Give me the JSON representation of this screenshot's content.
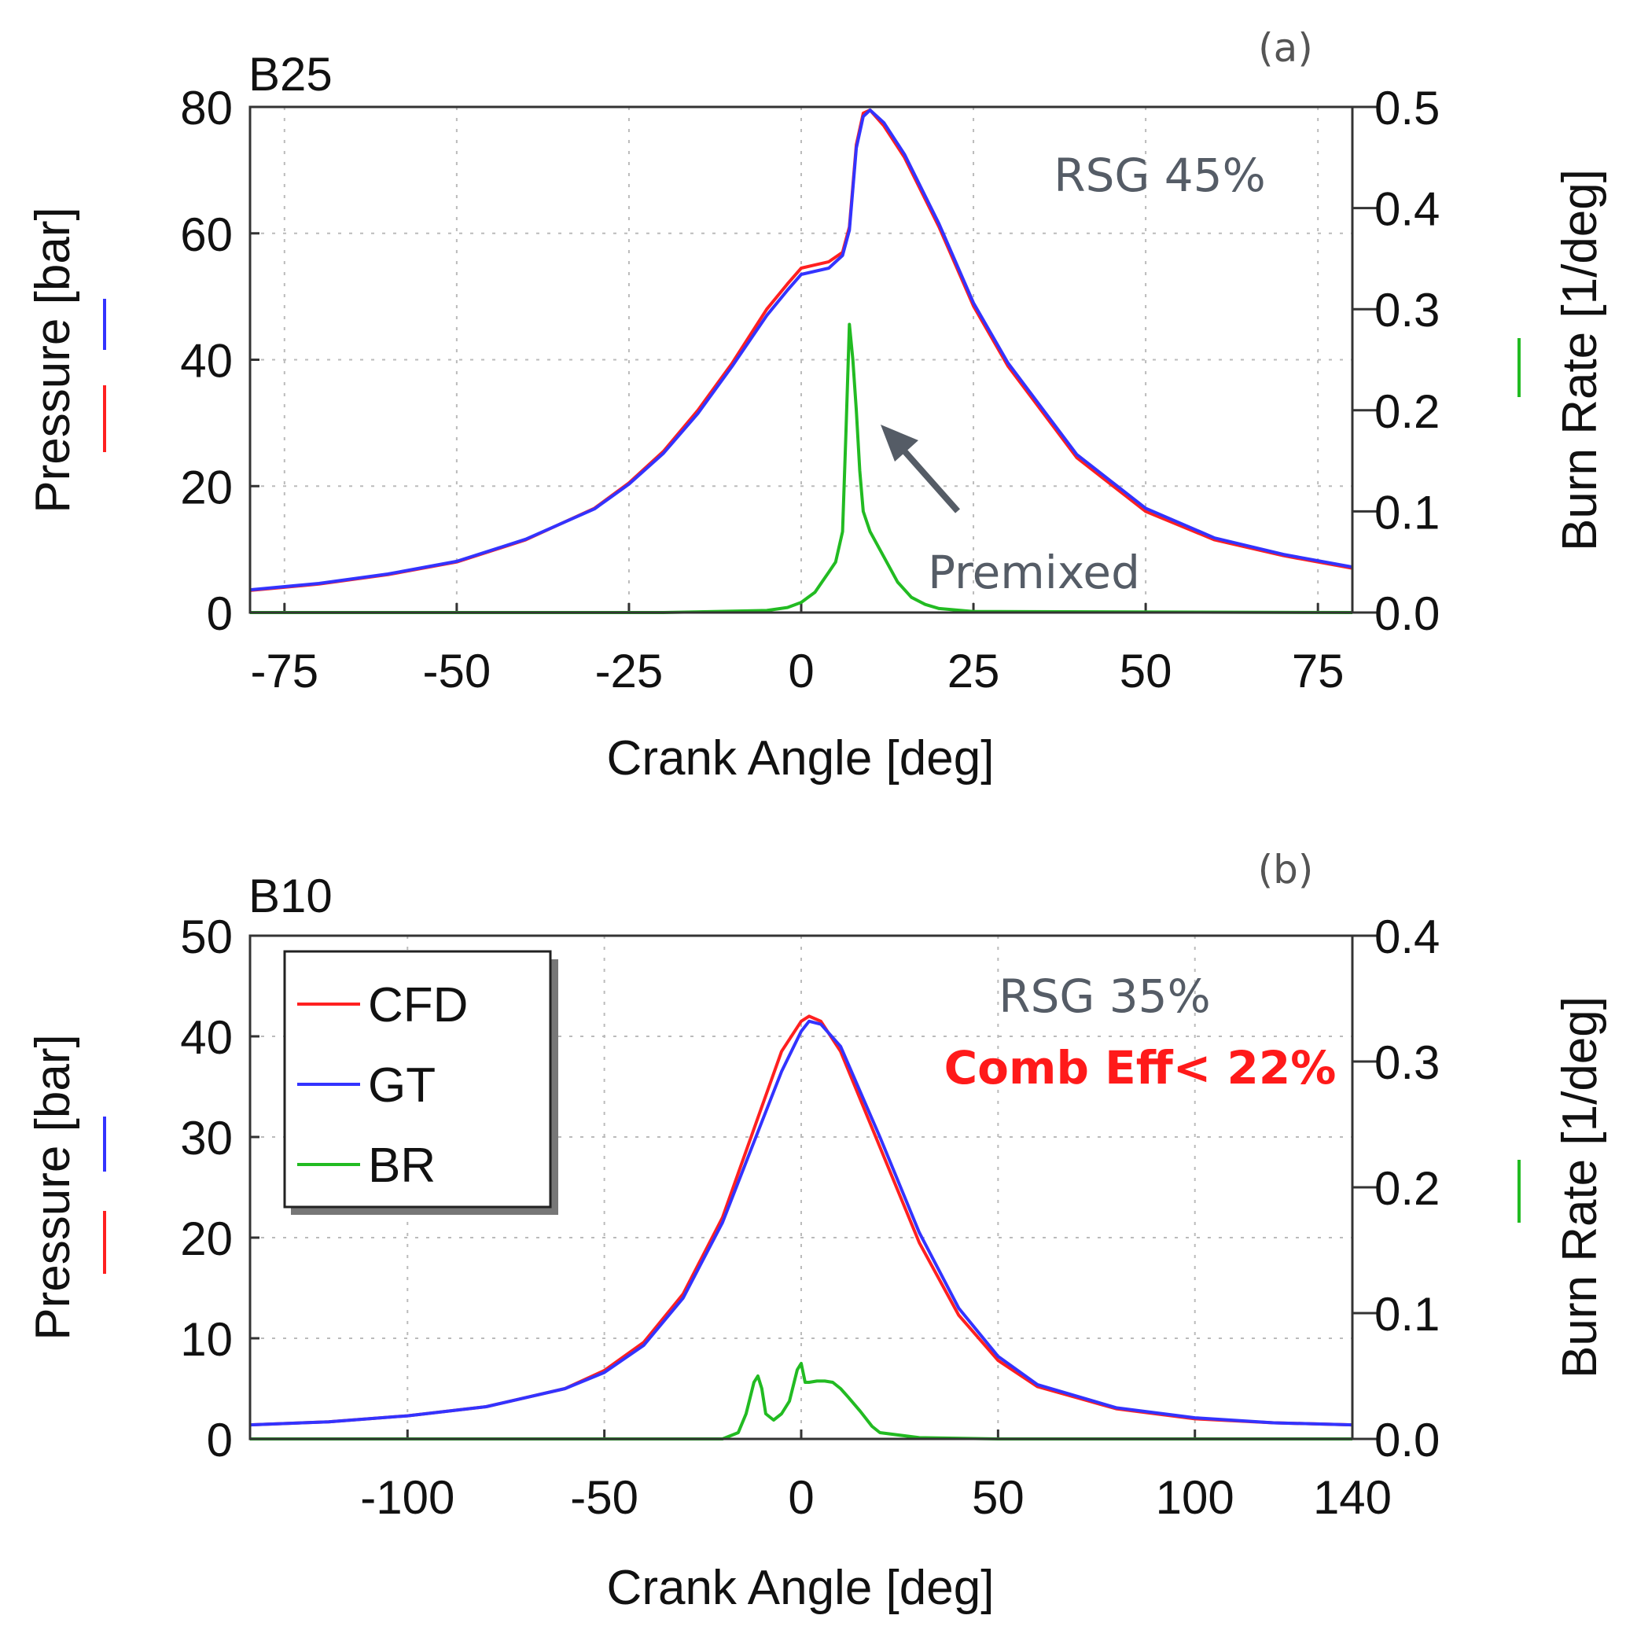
{
  "chart_data": [
    {
      "id": "a",
      "type": "line",
      "panel_label": "(a)",
      "title": "B25",
      "xlabel": "Crank Angle [deg]",
      "ylabel_left": "Pressure [bar]",
      "ylabel_right": "Burn Rate [1/deg]",
      "xlim": [
        -80,
        80
      ],
      "ylim_left": [
        0,
        80
      ],
      "ylim_right": [
        0,
        0.5
      ],
      "xticks": [
        -75,
        -50,
        -25,
        0,
        25,
        50,
        75
      ],
      "xtick_labels": [
        "-75",
        "-50",
        "-25",
        "0",
        "25",
        "50",
        "75"
      ],
      "yticks_left": [
        0,
        20,
        40,
        60,
        80
      ],
      "ytick_labels_left": [
        "0",
        "20",
        "40",
        "60",
        "80"
      ],
      "yticks_right": [
        0,
        0.1,
        0.2,
        0.3,
        0.4,
        0.5
      ],
      "ytick_labels_right": [
        "0.0",
        "0.1",
        "0.2",
        "0.3",
        "0.4",
        "0.5"
      ],
      "grid": true,
      "annotations": {
        "rsg": "RSG 45%",
        "premixed": "Premixed"
      },
      "series": [
        {
          "name": "CFD",
          "color": "#ff2020",
          "axis": "left",
          "x": [
            -80,
            -70,
            -60,
            -50,
            -40,
            -30,
            -25,
            -20,
            -15,
            -10,
            -5,
            -2,
            0,
            2,
            4,
            6,
            7,
            8,
            9,
            10,
            12,
            15,
            20,
            25,
            30,
            40,
            50,
            60,
            70,
            80
          ],
          "y": [
            3.5,
            4.5,
            6,
            8,
            11.5,
            16.5,
            20.5,
            25.5,
            32,
            39.5,
            48,
            52,
            54.5,
            55,
            55.5,
            57,
            61,
            74,
            79,
            79.5,
            77,
            72,
            61,
            48.5,
            39,
            24.5,
            16,
            11.5,
            9,
            7
          ]
        },
        {
          "name": "GT",
          "color": "#3333ff",
          "axis": "left",
          "x": [
            -80,
            -70,
            -60,
            -50,
            -40,
            -30,
            -25,
            -20,
            -15,
            -10,
            -5,
            -2,
            0,
            2,
            4,
            6,
            7,
            8,
            9,
            10,
            12,
            15,
            20,
            25,
            30,
            40,
            50,
            60,
            70,
            80
          ],
          "y": [
            3.6,
            4.6,
            6.1,
            8.1,
            11.6,
            16.4,
            20.3,
            25.2,
            31.5,
            39,
            47,
            51,
            53.5,
            54,
            54.5,
            56.5,
            60.5,
            73.5,
            78.5,
            79.5,
            77.5,
            72.5,
            61.5,
            49,
            39.5,
            25,
            16.5,
            11.8,
            9.2,
            7.2
          ]
        },
        {
          "name": "BR",
          "color": "#22bb22",
          "axis": "right",
          "x": [
            -80,
            -20,
            -5,
            -2,
            0,
            2,
            3,
            4,
            5,
            6,
            6.5,
            7,
            7.5,
            8,
            8.5,
            9,
            10,
            12,
            14,
            16,
            18,
            20,
            25,
            80
          ],
          "y": [
            0,
            0,
            0.002,
            0.005,
            0.01,
            0.02,
            0.03,
            0.04,
            0.05,
            0.08,
            0.18,
            0.285,
            0.25,
            0.2,
            0.14,
            0.1,
            0.08,
            0.055,
            0.03,
            0.015,
            0.008,
            0.004,
            0.001,
            0
          ]
        }
      ]
    },
    {
      "id": "b",
      "type": "line",
      "panel_label": "(b)",
      "title": "B10",
      "xlabel": "Crank Angle [deg]",
      "ylabel_left": "Pressure [bar]",
      "ylabel_right": "Burn Rate [1/deg]",
      "xlim": [
        -140,
        140
      ],
      "ylim_left": [
        0,
        50
      ],
      "ylim_right": [
        0,
        0.4
      ],
      "xticks": [
        -100,
        -50,
        0,
        50,
        100,
        140
      ],
      "xtick_labels": [
        "-100",
        "-50",
        "0",
        "50",
        "100",
        "140"
      ],
      "yticks_left": [
        0,
        10,
        20,
        30,
        40,
        50
      ],
      "ytick_labels_left": [
        "0",
        "10",
        "20",
        "30",
        "40",
        "50"
      ],
      "yticks_right": [
        0,
        0.1,
        0.2,
        0.3,
        0.4
      ],
      "ytick_labels_right": [
        "0.0",
        "0.1",
        "0.2",
        "0.3",
        "0.4"
      ],
      "grid": true,
      "legend": {
        "position": "top-left",
        "entries": [
          {
            "label": "CFD",
            "color": "#ff2020"
          },
          {
            "label": "GT",
            "color": "#3333ff"
          },
          {
            "label": "BR",
            "color": "#22bb22"
          }
        ]
      },
      "annotations": {
        "rsg": "RSG 35%",
        "comb_eff": "Comb Eff< 22%",
        "comb_eff_color": "#ff1a1a"
      },
      "series": [
        {
          "name": "CFD",
          "color": "#ff2020",
          "axis": "left",
          "x": [
            -140,
            -120,
            -100,
            -80,
            -60,
            -50,
            -40,
            -30,
            -20,
            -10,
            -5,
            0,
            2,
            5,
            10,
            20,
            30,
            40,
            50,
            60,
            80,
            100,
            120,
            140
          ],
          "y": [
            1.4,
            1.7,
            2.3,
            3.2,
            5,
            6.8,
            9.6,
            14.4,
            22,
            33,
            38.5,
            41.5,
            42,
            41.5,
            38.5,
            29,
            19.5,
            12.3,
            7.8,
            5.2,
            3,
            2,
            1.6,
            1.4
          ]
        },
        {
          "name": "GT",
          "color": "#3333ff",
          "axis": "left",
          "x": [
            -140,
            -120,
            -100,
            -80,
            -60,
            -50,
            -40,
            -30,
            -20,
            -10,
            -5,
            0,
            2,
            5,
            10,
            20,
            30,
            40,
            50,
            60,
            80,
            100,
            120,
            140
          ],
          "y": [
            1.4,
            1.7,
            2.3,
            3.2,
            5,
            6.6,
            9.3,
            14,
            21.5,
            31.5,
            36.5,
            40.5,
            41.5,
            41.2,
            39,
            30,
            20.5,
            13,
            8.2,
            5.4,
            3.1,
            2.1,
            1.6,
            1.4
          ]
        },
        {
          "name": "BR",
          "color": "#22bb22",
          "axis": "right",
          "x": [
            -140,
            -20,
            -16,
            -14,
            -12,
            -11,
            -10,
            -9,
            -7,
            -5,
            -3,
            -1,
            0,
            1,
            2,
            4,
            6,
            8,
            10,
            12,
            15,
            18,
            20,
            30,
            50,
            140
          ],
          "y": [
            0,
            0,
            0.005,
            0.02,
            0.045,
            0.05,
            0.04,
            0.02,
            0.015,
            0.02,
            0.03,
            0.055,
            0.06,
            0.045,
            0.045,
            0.046,
            0.046,
            0.045,
            0.04,
            0.033,
            0.022,
            0.01,
            0.005,
            0.001,
            0,
            0
          ]
        }
      ]
    }
  ]
}
